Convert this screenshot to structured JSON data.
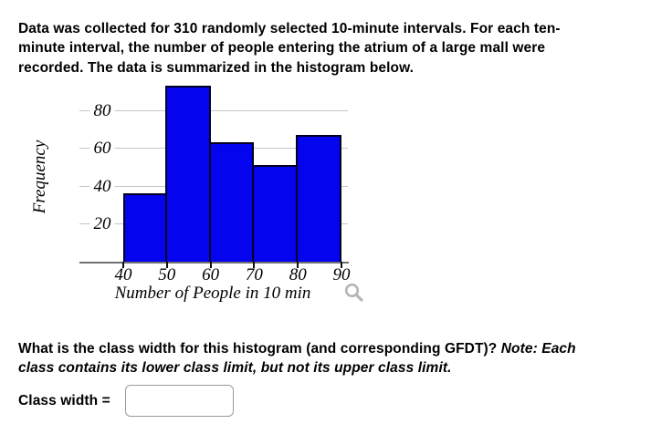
{
  "intro": {
    "lines": [
      "Data was collected for 310 randomly selected 10-minute intervals. For each ten-",
      "minute interval, the number of people entering the atrium of a large mall were",
      "recorded. The data is summarized in the histogram below."
    ]
  },
  "chart_data": {
    "type": "bar",
    "subtype": "histogram",
    "title": "",
    "xlabel": "Number of People in 10 min",
    "ylabel": "Frequency",
    "bin_edges": [
      40,
      50,
      60,
      70,
      80,
      90
    ],
    "categories": [
      "40-50",
      "50-60",
      "60-70",
      "70-80",
      "80-90"
    ],
    "values": [
      36,
      93,
      63,
      51,
      67
    ],
    "y_ticks": [
      20,
      40,
      60,
      80
    ],
    "ylim": [
      0,
      95
    ],
    "grid": true,
    "legend": false,
    "bar_color": "#0404ee",
    "bar_border_color": "#000022",
    "gridline_color": "#c6c6c6",
    "axis_color": "#707070",
    "tick_color": "#111111"
  },
  "icons": {
    "zoom": "magnifier-icon",
    "zoom_color": "#b5b5b5"
  },
  "question": {
    "prefix": "What is the class width for this histogram (and corresponding GFDT)? ",
    "note_line1": "Note: Each",
    "note_line2": "class contains its lower class limit, but not its upper class limit."
  },
  "answer": {
    "label": "Class width =",
    "value": "",
    "placeholder": ""
  }
}
